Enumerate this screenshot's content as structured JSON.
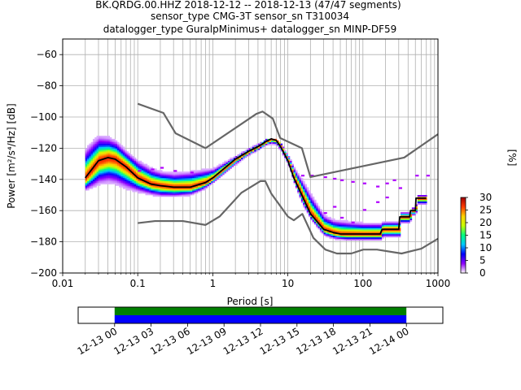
{
  "chart_data": {
    "type": "heatmap",
    "title_lines": [
      "BK.QRDG.00.HHZ   2018-12-12 -- 2018-12-13  (47/47 segments)",
      "sensor_type CMG-3T sensor_sn T310034",
      "datalogger_type GuralpMinimus+ datalogger_sn MINP-DF59"
    ],
    "xlabel": "Period [s]",
    "ylabel": "Power [m²/s⁴/Hz] [dB]",
    "x_scale": "log",
    "xlim": [
      0.01,
      1000
    ],
    "ylim": [
      -200,
      -50
    ],
    "x_ticks": [
      {
        "value": 0.01,
        "label": "0.01"
      },
      {
        "value": 0.1,
        "label": "0.1"
      },
      {
        "value": 1,
        "label": "1"
      },
      {
        "value": 10,
        "label": "10"
      },
      {
        "value": 100,
        "label": "100"
      },
      {
        "value": 1000,
        "label": "1000"
      }
    ],
    "y_ticks": [
      -60,
      -80,
      -100,
      -120,
      -140,
      -160,
      -180,
      -200
    ],
    "grid": true,
    "colorbar": {
      "label": "[%]",
      "ticks": [
        0,
        5,
        10,
        15,
        20,
        25,
        30
      ],
      "range": [
        0,
        30
      ],
      "colors": [
        "#ffffff",
        "#8f00ff",
        "#0000ff",
        "#00c8ff",
        "#00ff80",
        "#c8ff00",
        "#ffd200",
        "#ff3c00",
        "#a00000"
      ]
    },
    "mode_curve": {
      "name": "mode",
      "x": [
        0.02,
        0.025,
        0.03,
        0.04,
        0.05,
        0.07,
        0.1,
        0.15,
        0.2,
        0.3,
        0.5,
        0.8,
        1.0,
        2.0,
        3.0,
        4.0,
        5.0,
        6.0,
        7.0,
        8.0,
        10.0,
        12.0,
        15.0,
        20.0,
        30.0,
        40.0,
        50.0,
        80.0,
        120.0,
        170.0,
        180.0,
        300.0,
        310.0,
        420.0,
        430.0,
        500.0,
        510.0,
        700.0
      ],
      "y": [
        -139,
        -133,
        -128,
        -126,
        -127,
        -132,
        -139,
        -143,
        -144,
        -145,
        -145,
        -142,
        -139,
        -127,
        -122,
        -119,
        -116,
        -114,
        -115,
        -119,
        -128,
        -139,
        -149,
        -162,
        -172,
        -174,
        -175,
        -175,
        -175,
        -175,
        -172,
        -172,
        -164,
        -164,
        -160,
        -160,
        -152,
        -152
      ]
    },
    "nlnm": {
      "name": "NLNM",
      "x": [
        0.1,
        0.17,
        0.4,
        0.8,
        1.24,
        2.4,
        4.3,
        5.0,
        6.0,
        10.0,
        12.0,
        15.6,
        21.9,
        31.6,
        45.0,
        70.0,
        101.0,
        154.0,
        328.0,
        600.0,
        1000.0
      ],
      "y": [
        -168,
        -166.7,
        -166.7,
        -169.2,
        -163.7,
        -148.6,
        -141.1,
        -141.1,
        -149.0,
        -163.8,
        -166.2,
        -162.1,
        -177.5,
        -185.0,
        -187.5,
        -187.5,
        -185.0,
        -185.0,
        -187.5,
        -184.4,
        -178.0
      ]
    },
    "nhnm": {
      "name": "NHNM",
      "x": [
        0.1,
        0.22,
        0.32,
        0.8,
        3.8,
        4.6,
        6.3,
        7.9,
        15.4,
        20.0,
        354.8,
        1000.0
      ],
      "y": [
        -91.5,
        -97.4,
        -110.5,
        -120.0,
        -98.0,
        -96.5,
        -101.0,
        -113.5,
        -120.0,
        -138.5,
        -126.0,
        -111.0
      ]
    },
    "density_envelope": {
      "x": [
        0.02,
        0.025,
        0.03,
        0.04,
        0.05,
        0.07,
        0.1,
        0.15,
        0.2,
        0.3,
        0.5,
        0.7,
        1.0,
        2.0,
        3.0,
        5.0,
        6.0,
        7.0,
        8.0,
        10.0,
        12.0,
        15.0,
        20.0,
        30.0,
        40.0,
        60.0,
        100.0,
        170.0,
        180.0,
        300.0,
        310.0,
        420.0,
        430.0,
        500.0,
        510.0,
        700.0
      ],
      "upper": [
        -120,
        -115,
        -112,
        -113,
        -115,
        -122,
        -128,
        -133,
        -135,
        -136,
        -135,
        -134,
        -133,
        -125,
        -120,
        -115,
        -114,
        -115,
        -118,
        -125,
        -133,
        -140,
        -150,
        -163,
        -166,
        -167,
        -168,
        -168,
        -167,
        -167,
        -161,
        -161,
        -158,
        -158,
        -151,
        -150
      ],
      "lower": [
        -147,
        -145,
        -143,
        -142,
        -143,
        -146,
        -148,
        -150,
        -151,
        -151,
        -150,
        -147,
        -142,
        -130,
        -124,
        -118,
        -117,
        -118,
        -122,
        -131,
        -143,
        -155,
        -166,
        -176,
        -178,
        -179,
        -179,
        -179,
        -177,
        -177,
        -168,
        -168,
        -163,
        -163,
        -156,
        -156
      ]
    },
    "density_outliers": [
      {
        "x": 0.1,
        "y": -135
      },
      {
        "x": 0.15,
        "y": -134
      },
      {
        "x": 0.2,
        "y": -133
      },
      {
        "x": 0.3,
        "y": -135
      },
      {
        "x": 0.5,
        "y": -136
      },
      {
        "x": 15.0,
        "y": -138
      },
      {
        "x": 20.0,
        "y": -138
      },
      {
        "x": 30.0,
        "y": -139
      },
      {
        "x": 40.0,
        "y": -140
      },
      {
        "x": 50.0,
        "y": -141
      },
      {
        "x": 70.0,
        "y": -142
      },
      {
        "x": 100.0,
        "y": -143
      },
      {
        "x": 150.0,
        "y": -145
      },
      {
        "x": 200.0,
        "y": -143
      },
      {
        "x": 250.0,
        "y": -141
      },
      {
        "x": 500.0,
        "y": -138
      },
      {
        "x": 700.0,
        "y": -138
      },
      {
        "x": 30.0,
        "y": -162
      },
      {
        "x": 40.0,
        "y": -158
      },
      {
        "x": 50.0,
        "y": -165
      },
      {
        "x": 70.0,
        "y": -168
      },
      {
        "x": 100.0,
        "y": -160
      },
      {
        "x": 150.0,
        "y": -155
      },
      {
        "x": 200.0,
        "y": -152
      },
      {
        "x": 300.0,
        "y": -146
      }
    ],
    "timeline": {
      "tick_labels": [
        "12-13 00",
        "12-13 03",
        "12-13 06",
        "12-13 09",
        "12-13 12",
        "12-13 15",
        "12-13 18",
        "12-13 21",
        "12-14 00"
      ],
      "start_hour": -3.0,
      "end_hour": 27.0,
      "coverage_start_hour": 0.0,
      "coverage_end_hour": 24.0,
      "data_color": "#008000",
      "psd_color": "#0000ff"
    }
  }
}
